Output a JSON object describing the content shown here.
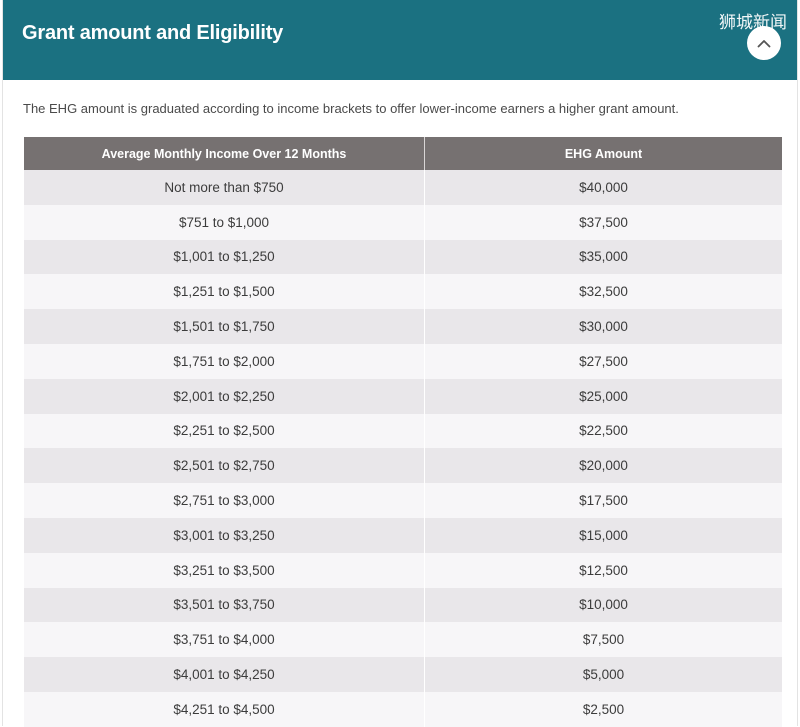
{
  "accordion": {
    "title": "Grant amount and Eligibility",
    "watermark": "狮城新闻",
    "collapse_icon": "chevron-up-icon",
    "header_color": "#1b7181"
  },
  "intro_text": "The EHG amount is graduated according to income brackets to offer lower-income earners a higher grant amount.",
  "table": {
    "headers": [
      "Average Monthly Income Over 12 Months",
      "EHG Amount"
    ],
    "rows": [
      [
        "Not more than $750",
        "$40,000"
      ],
      [
        "$751 to $1,000",
        "$37,500"
      ],
      [
        "$1,001 to $1,250",
        "$35,000"
      ],
      [
        "$1,251 to $1,500",
        "$32,500"
      ],
      [
        "$1,501 to $1,750",
        "$30,000"
      ],
      [
        "$1,751 to $2,000",
        "$27,500"
      ],
      [
        "$2,001 to $2,250",
        "$25,000"
      ],
      [
        "$2,251 to $2,500",
        "$22,500"
      ],
      [
        "$2,501 to $2,750",
        "$20,000"
      ],
      [
        "$2,751 to $3,000",
        "$17,500"
      ],
      [
        "$3,001 to $3,250",
        "$15,000"
      ],
      [
        "$3,251 to $3,500",
        "$12,500"
      ],
      [
        "$3,501 to $3,750",
        "$10,000"
      ],
      [
        "$3,751 to $4,000",
        "$7,500"
      ],
      [
        "$4,001 to $4,250",
        "$5,000"
      ],
      [
        "$4,251 to $4,500",
        "$2,500"
      ]
    ]
  }
}
